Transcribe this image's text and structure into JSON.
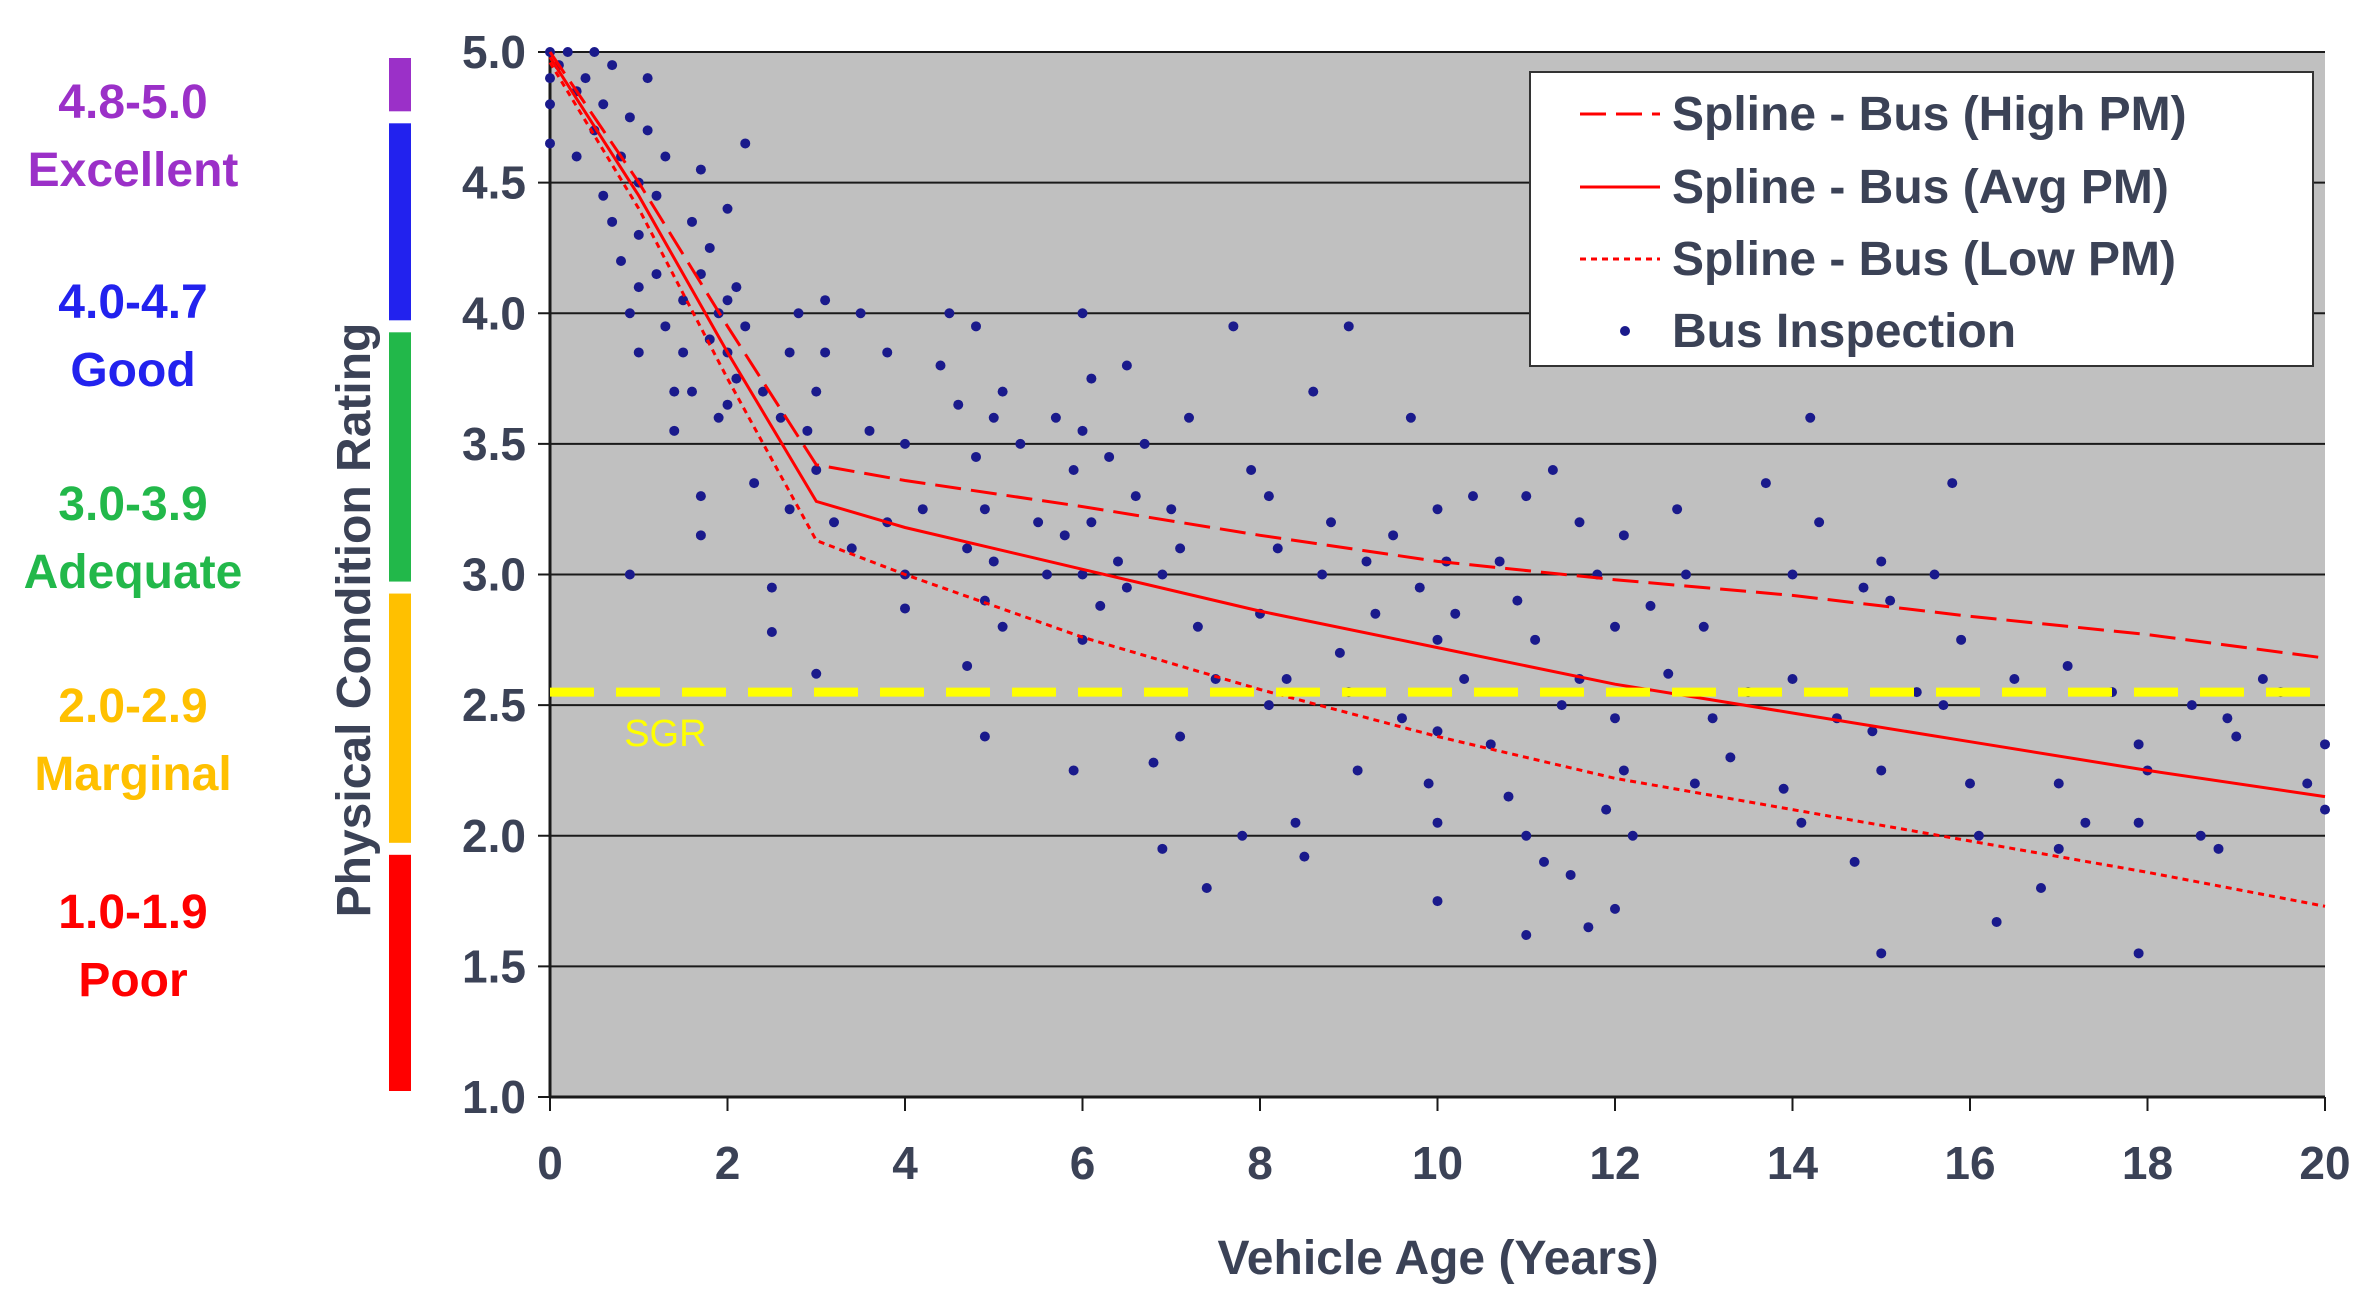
{
  "chart_data": {
    "type": "scatter",
    "xlabel": "Vehicle Age (Years)",
    "ylabel": "Physical Condition Rating",
    "xlim": [
      0,
      20
    ],
    "ylim": [
      1.0,
      5.0
    ],
    "x_ticks": [
      "0",
      "2",
      "4",
      "6",
      "8",
      "10",
      "12",
      "14",
      "16",
      "18",
      "20"
    ],
    "y_ticks": [
      "1.0",
      "1.5",
      "2.0",
      "2.5",
      "3.0",
      "3.5",
      "4.0",
      "4.5",
      "5.0"
    ],
    "grid": "horizontal",
    "legend_position": "top-right",
    "colors": {
      "plot_background": "#c0c0c0",
      "line": "#ff0000",
      "points": "#1a1a8c",
      "sgr": "#ffff00"
    },
    "rating_bands": [
      {
        "range": "4.8-5.0",
        "name": "Excellent",
        "color": "#9b30c8",
        "from": 4.8,
        "to": 5.0
      },
      {
        "range": "4.0-4.7",
        "name": "Good",
        "color": "#2222ee",
        "from": 4.0,
        "to": 4.7
      },
      {
        "range": "3.0-3.9",
        "name": "Adequate",
        "color": "#22b84a",
        "from": 3.0,
        "to": 3.9
      },
      {
        "range": "2.0-2.9",
        "name": "Marginal",
        "color": "#ffc000",
        "from": 2.0,
        "to": 2.9
      },
      {
        "range": "1.0-1.9",
        "name": "Poor",
        "color": "#ff0000",
        "from": 1.0,
        "to": 1.9
      }
    ],
    "sgr": {
      "label": "SGR",
      "y": 2.55
    },
    "series": [
      {
        "name": "Spline - Bus (High PM)",
        "style": "dashed",
        "x": [
          0,
          1,
          2,
          3,
          4,
          6,
          8,
          10,
          12,
          14,
          16,
          18,
          20
        ],
        "y": [
          5.0,
          4.5,
          3.95,
          3.42,
          3.36,
          3.26,
          3.15,
          3.05,
          2.98,
          2.92,
          2.84,
          2.77,
          2.68
        ]
      },
      {
        "name": "Spline - Bus (Avg PM)",
        "style": "solid",
        "x": [
          0,
          1,
          2,
          3,
          4,
          6,
          8,
          10,
          12,
          14,
          16,
          18,
          20
        ],
        "y": [
          4.98,
          4.45,
          3.85,
          3.28,
          3.18,
          3.02,
          2.86,
          2.72,
          2.58,
          2.47,
          2.36,
          2.25,
          2.15
        ]
      },
      {
        "name": "Spline - Bus (Low PM)",
        "style": "dotted",
        "x": [
          0,
          1,
          2,
          3,
          4,
          6,
          8,
          10,
          12,
          14,
          16,
          18,
          20
        ],
        "y": [
          4.96,
          4.4,
          3.75,
          3.13,
          3.0,
          2.76,
          2.56,
          2.38,
          2.22,
          2.1,
          1.98,
          1.86,
          1.73
        ]
      },
      {
        "name": "Bus Inspection",
        "style": "points",
        "points": [
          [
            0.0,
            5.0
          ],
          [
            0.0,
            4.9
          ],
          [
            0.0,
            4.8
          ],
          [
            0.0,
            4.65
          ],
          [
            0.1,
            4.95
          ],
          [
            0.2,
            5.0
          ],
          [
            0.3,
            4.85
          ],
          [
            0.3,
            4.6
          ],
          [
            0.4,
            4.9
          ],
          [
            0.5,
            5.0
          ],
          [
            0.5,
            4.7
          ],
          [
            0.6,
            4.45
          ],
          [
            0.6,
            4.8
          ],
          [
            0.7,
            4.95
          ],
          [
            0.7,
            4.35
          ],
          [
            0.8,
            4.6
          ],
          [
            0.8,
            4.2
          ],
          [
            0.9,
            4.75
          ],
          [
            0.9,
            4.0
          ],
          [
            0.9,
            3.0
          ],
          [
            1.0,
            4.5
          ],
          [
            1.0,
            4.3
          ],
          [
            1.0,
            4.1
          ],
          [
            1.0,
            3.85
          ],
          [
            1.1,
            4.9
          ],
          [
            1.1,
            4.7
          ],
          [
            1.2,
            4.45
          ],
          [
            1.2,
            4.15
          ],
          [
            1.3,
            3.95
          ],
          [
            1.3,
            4.6
          ],
          [
            1.4,
            3.7
          ],
          [
            1.4,
            3.55
          ],
          [
            1.5,
            4.05
          ],
          [
            1.5,
            3.85
          ],
          [
            1.6,
            4.35
          ],
          [
            1.6,
            3.7
          ],
          [
            1.7,
            4.55
          ],
          [
            1.7,
            4.15
          ],
          [
            1.7,
            3.3
          ],
          [
            1.7,
            3.15
          ],
          [
            1.8,
            3.9
          ],
          [
            1.8,
            4.25
          ],
          [
            1.9,
            4.0
          ],
          [
            1.9,
            3.6
          ],
          [
            2.0,
            4.4
          ],
          [
            2.0,
            4.05
          ],
          [
            2.0,
            3.85
          ],
          [
            2.0,
            3.65
          ],
          [
            2.1,
            4.1
          ],
          [
            2.1,
            3.75
          ],
          [
            2.2,
            4.65
          ],
          [
            2.2,
            3.95
          ],
          [
            2.3,
            3.35
          ],
          [
            2.4,
            3.7
          ],
          [
            2.5,
            2.95
          ],
          [
            2.5,
            2.78
          ],
          [
            2.6,
            3.6
          ],
          [
            2.7,
            3.85
          ],
          [
            2.7,
            3.25
          ],
          [
            2.8,
            4.0
          ],
          [
            2.9,
            3.55
          ],
          [
            3.0,
            3.7
          ],
          [
            3.0,
            3.4
          ],
          [
            3.0,
            2.62
          ],
          [
            3.1,
            4.05
          ],
          [
            3.1,
            3.85
          ],
          [
            3.2,
            3.2
          ],
          [
            3.4,
            3.1
          ],
          [
            3.5,
            4.0
          ],
          [
            3.6,
            3.55
          ],
          [
            3.8,
            3.85
          ],
          [
            3.8,
            3.2
          ],
          [
            4.0,
            3.5
          ],
          [
            4.0,
            3.0
          ],
          [
            4.0,
            2.87
          ],
          [
            4.2,
            3.25
          ],
          [
            4.4,
            3.8
          ],
          [
            4.5,
            4.0
          ],
          [
            4.6,
            3.65
          ],
          [
            4.7,
            3.1
          ],
          [
            4.7,
            2.65
          ],
          [
            4.8,
            3.95
          ],
          [
            4.8,
            3.45
          ],
          [
            4.9,
            3.25
          ],
          [
            4.9,
            2.9
          ],
          [
            4.9,
            2.38
          ],
          [
            5.0,
            3.6
          ],
          [
            5.0,
            3.05
          ],
          [
            5.1,
            3.7
          ],
          [
            5.1,
            2.8
          ],
          [
            5.3,
            3.5
          ],
          [
            5.5,
            3.2
          ],
          [
            5.6,
            3.0
          ],
          [
            5.7,
            3.6
          ],
          [
            5.8,
            3.15
          ],
          [
            5.9,
            3.4
          ],
          [
            5.9,
            2.25
          ],
          [
            6.0,
            4.0
          ],
          [
            6.0,
            3.55
          ],
          [
            6.0,
            3.0
          ],
          [
            6.0,
            2.75
          ],
          [
            6.1,
            3.75
          ],
          [
            6.1,
            3.2
          ],
          [
            6.2,
            2.88
          ],
          [
            6.3,
            3.45
          ],
          [
            6.4,
            3.05
          ],
          [
            6.5,
            3.8
          ],
          [
            6.5,
            2.95
          ],
          [
            6.6,
            3.3
          ],
          [
            6.7,
            3.5
          ],
          [
            6.8,
            2.28
          ],
          [
            6.9,
            3.0
          ],
          [
            6.9,
            1.95
          ],
          [
            7.0,
            3.25
          ],
          [
            7.1,
            2.38
          ],
          [
            7.1,
            3.1
          ],
          [
            7.2,
            3.6
          ],
          [
            7.3,
            2.8
          ],
          [
            7.4,
            1.8
          ],
          [
            7.5,
            2.6
          ],
          [
            7.7,
            3.95
          ],
          [
            7.8,
            2.0
          ],
          [
            7.9,
            3.4
          ],
          [
            8.0,
            2.85
          ],
          [
            8.1,
            3.3
          ],
          [
            8.1,
            2.5
          ],
          [
            8.2,
            3.1
          ],
          [
            8.3,
            2.6
          ],
          [
            8.4,
            2.05
          ],
          [
            8.5,
            1.92
          ],
          [
            8.6,
            3.7
          ],
          [
            8.7,
            3.0
          ],
          [
            8.8,
            3.2
          ],
          [
            8.9,
            2.7
          ],
          [
            9.0,
            3.95
          ],
          [
            9.0,
            2.55
          ],
          [
            9.1,
            2.25
          ],
          [
            9.2,
            3.05
          ],
          [
            9.3,
            2.85
          ],
          [
            9.5,
            3.15
          ],
          [
            9.6,
            2.45
          ],
          [
            9.7,
            3.6
          ],
          [
            9.8,
            2.95
          ],
          [
            9.9,
            2.2
          ],
          [
            10.0,
            3.25
          ],
          [
            10.0,
            2.75
          ],
          [
            10.0,
            2.4
          ],
          [
            10.0,
            2.05
          ],
          [
            10.0,
            1.75
          ],
          [
            10.1,
            3.05
          ],
          [
            10.2,
            2.85
          ],
          [
            10.3,
            2.6
          ],
          [
            10.4,
            3.3
          ],
          [
            10.6,
            2.35
          ],
          [
            10.7,
            3.05
          ],
          [
            10.8,
            2.15
          ],
          [
            10.9,
            2.9
          ],
          [
            11.0,
            3.3
          ],
          [
            11.0,
            2.0
          ],
          [
            11.0,
            1.62
          ],
          [
            11.1,
            2.75
          ],
          [
            11.2,
            1.9
          ],
          [
            11.3,
            3.4
          ],
          [
            11.4,
            2.5
          ],
          [
            11.5,
            1.85
          ],
          [
            11.6,
            3.2
          ],
          [
            11.6,
            2.6
          ],
          [
            11.7,
            1.65
          ],
          [
            11.8,
            3.0
          ],
          [
            11.9,
            2.1
          ],
          [
            12.0,
            2.8
          ],
          [
            12.0,
            2.45
          ],
          [
            12.0,
            1.72
          ],
          [
            12.1,
            3.15
          ],
          [
            12.1,
            2.25
          ],
          [
            12.2,
            2.0
          ],
          [
            12.4,
            2.88
          ],
          [
            12.6,
            2.62
          ],
          [
            12.7,
            3.25
          ],
          [
            12.8,
            3.0
          ],
          [
            12.9,
            2.2
          ],
          [
            13.0,
            2.8
          ],
          [
            13.1,
            2.45
          ],
          [
            13.3,
            2.3
          ],
          [
            13.5,
            2.55
          ],
          [
            13.7,
            3.35
          ],
          [
            13.9,
            2.18
          ],
          [
            14.0,
            3.0
          ],
          [
            14.0,
            2.6
          ],
          [
            14.1,
            2.05
          ],
          [
            14.2,
            3.6
          ],
          [
            14.3,
            3.2
          ],
          [
            14.5,
            2.45
          ],
          [
            14.7,
            1.9
          ],
          [
            14.8,
            2.95
          ],
          [
            14.9,
            2.4
          ],
          [
            15.0,
            3.05
          ],
          [
            15.0,
            2.25
          ],
          [
            15.0,
            1.55
          ],
          [
            15.1,
            2.9
          ],
          [
            15.4,
            2.55
          ],
          [
            15.6,
            3.0
          ],
          [
            15.7,
            2.5
          ],
          [
            15.8,
            3.35
          ],
          [
            15.9,
            2.75
          ],
          [
            16.0,
            2.2
          ],
          [
            16.1,
            2.0
          ],
          [
            16.3,
            1.67
          ],
          [
            16.5,
            2.6
          ],
          [
            16.8,
            1.8
          ],
          [
            17.0,
            2.2
          ],
          [
            17.0,
            1.95
          ],
          [
            17.1,
            2.65
          ],
          [
            17.3,
            2.05
          ],
          [
            17.6,
            2.55
          ],
          [
            17.9,
            2.35
          ],
          [
            17.9,
            2.05
          ],
          [
            17.9,
            1.55
          ],
          [
            18.0,
            2.25
          ],
          [
            18.5,
            2.5
          ],
          [
            18.6,
            2.0
          ],
          [
            18.8,
            1.95
          ],
          [
            18.9,
            2.45
          ],
          [
            19.0,
            2.38
          ],
          [
            19.3,
            2.6
          ],
          [
            19.5,
            2.55
          ],
          [
            19.8,
            2.2
          ],
          [
            20.0,
            2.1
          ],
          [
            20.0,
            2.35
          ]
        ]
      }
    ]
  }
}
